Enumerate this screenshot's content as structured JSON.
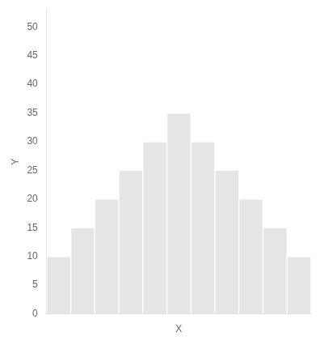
{
  "chart_data": {
    "type": "bar",
    "categories": [
      null,
      null,
      null,
      null,
      null,
      null,
      null,
      null,
      null,
      null,
      null
    ],
    "values": [
      10,
      15,
      20,
      25,
      30,
      35,
      30,
      25,
      20,
      15,
      10
    ],
    "xlabel": "X",
    "ylabel": "Y",
    "ylim": [
      0,
      53
    ],
    "yticks": [
      0,
      5,
      10,
      15,
      20,
      25,
      30,
      35,
      40,
      45,
      50
    ],
    "grid": false,
    "tick_labels": "y"
  }
}
